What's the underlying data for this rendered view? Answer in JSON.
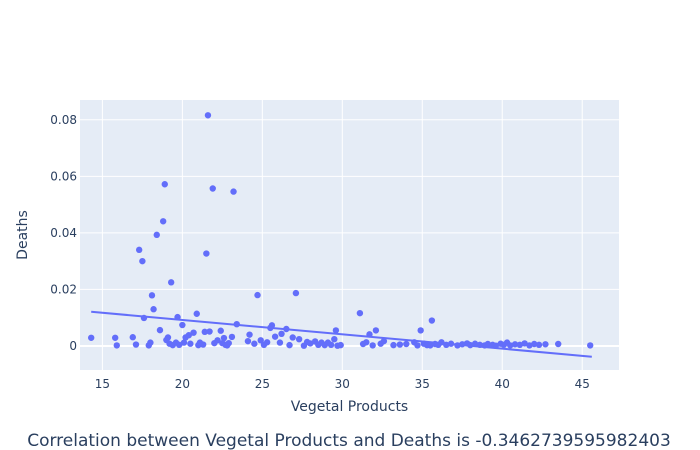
{
  "chart_data": {
    "type": "scatter",
    "title": "",
    "xlabel": "Vegetal Products",
    "ylabel": "Deaths",
    "caption": "Correlation between Vegetal Products and Deaths is -0.3462739595982403",
    "xlim": [
      13.6,
      47.3
    ],
    "ylim": [
      -0.0085,
      0.087
    ],
    "xticks": [
      15,
      20,
      25,
      30,
      35,
      40,
      45
    ],
    "yticks": [
      0,
      0.02,
      0.04,
      0.06,
      0.08
    ],
    "ytick_labels": [
      "0",
      "0.02",
      "0.04",
      "0.06",
      "0.08"
    ],
    "grid": true,
    "colors": {
      "marker": "#636efa",
      "trendline": "#636efa",
      "plot_bg": "#e5ecf6",
      "grid": "#ffffff",
      "text": "#2a3f5f"
    },
    "trendline": {
      "x": [
        14.3,
        45.6
      ],
      "y": [
        0.0121,
        -0.0038
      ]
    },
    "points": [
      [
        14.3,
        0.0029
      ],
      [
        15.8,
        0.0029
      ],
      [
        15.9,
        0.0002
      ],
      [
        16.9,
        0.0031
      ],
      [
        17.1,
        0.0005
      ],
      [
        17.3,
        0.034
      ],
      [
        17.5,
        0.03
      ],
      [
        17.6,
        0.0099
      ],
      [
        17.9,
        0.0002
      ],
      [
        18.0,
        0.0012
      ],
      [
        18.1,
        0.0179
      ],
      [
        18.2,
        0.013
      ],
      [
        18.4,
        0.0393
      ],
      [
        18.6,
        0.0056
      ],
      [
        18.8,
        0.0441
      ],
      [
        18.9,
        0.0572
      ],
      [
        19.0,
        0.0021
      ],
      [
        19.1,
        0.003
      ],
      [
        19.2,
        0.0008
      ],
      [
        19.3,
        0.0225
      ],
      [
        19.4,
        0.0003
      ],
      [
        19.6,
        0.0012
      ],
      [
        19.7,
        0.0102
      ],
      [
        19.8,
        0.0004
      ],
      [
        20.0,
        0.0074
      ],
      [
        20.1,
        0.0012
      ],
      [
        20.2,
        0.003
      ],
      [
        20.4,
        0.0038
      ],
      [
        20.5,
        0.0008
      ],
      [
        20.7,
        0.0047
      ],
      [
        20.9,
        0.0114
      ],
      [
        21.0,
        0.0003
      ],
      [
        21.1,
        0.0012
      ],
      [
        21.3,
        0.0005
      ],
      [
        21.4,
        0.005
      ],
      [
        21.5,
        0.0327
      ],
      [
        21.6,
        0.0816
      ],
      [
        21.7,
        0.0051
      ],
      [
        21.9,
        0.0557
      ],
      [
        22.0,
        0.001
      ],
      [
        22.2,
        0.002
      ],
      [
        22.4,
        0.0054
      ],
      [
        22.5,
        0.001
      ],
      [
        22.6,
        0.0028
      ],
      [
        22.7,
        0.0004
      ],
      [
        22.8,
        0.0002
      ],
      [
        22.9,
        0.001
      ],
      [
        23.1,
        0.0032
      ],
      [
        23.2,
        0.0546
      ],
      [
        23.4,
        0.0077
      ],
      [
        24.1,
        0.0017
      ],
      [
        24.2,
        0.004
      ],
      [
        24.5,
        0.0008
      ],
      [
        24.7,
        0.018
      ],
      [
        24.9,
        0.002
      ],
      [
        25.1,
        0.0004
      ],
      [
        25.3,
        0.0013
      ],
      [
        25.5,
        0.0064
      ],
      [
        25.6,
        0.0073
      ],
      [
        25.8,
        0.0033
      ],
      [
        26.1,
        0.0012
      ],
      [
        26.2,
        0.0043
      ],
      [
        26.5,
        0.006
      ],
      [
        26.7,
        0.0003
      ],
      [
        26.9,
        0.003
      ],
      [
        27.1,
        0.0187
      ],
      [
        27.3,
        0.0024
      ],
      [
        27.6,
        0.0001
      ],
      [
        27.8,
        0.0014
      ],
      [
        28.0,
        0.0009
      ],
      [
        28.3,
        0.0016
      ],
      [
        28.5,
        0.0004
      ],
      [
        28.7,
        0.0012
      ],
      [
        28.9,
        0.0003
      ],
      [
        29.1,
        0.0012
      ],
      [
        29.3,
        0.0004
      ],
      [
        29.5,
        0.0024
      ],
      [
        29.6,
        0.0055
      ],
      [
        29.7,
        0.0001
      ],
      [
        29.9,
        0.0003
      ],
      [
        31.1,
        0.0116
      ],
      [
        31.3,
        0.0007
      ],
      [
        31.5,
        0.0013
      ],
      [
        31.7,
        0.0041
      ],
      [
        31.9,
        0.0002
      ],
      [
        32.1,
        0.0055
      ],
      [
        32.4,
        0.0008
      ],
      [
        32.6,
        0.0017
      ],
      [
        33.2,
        0.0003
      ],
      [
        33.6,
        0.0005
      ],
      [
        34.0,
        0.0007
      ],
      [
        34.5,
        0.0013
      ],
      [
        34.7,
        0.0002
      ],
      [
        34.9,
        0.0055
      ],
      [
        35.1,
        0.0008
      ],
      [
        35.3,
        0.0003
      ],
      [
        35.5,
        0.0002
      ],
      [
        35.6,
        0.009
      ],
      [
        35.8,
        0.0007
      ],
      [
        36.0,
        0.0004
      ],
      [
        36.2,
        0.0013
      ],
      [
        36.5,
        0.0004
      ],
      [
        36.8,
        0.0008
      ],
      [
        37.2,
        0.0002
      ],
      [
        37.5,
        0.0006
      ],
      [
        37.8,
        0.0009
      ],
      [
        38.0,
        0.0003
      ],
      [
        38.3,
        0.0008
      ],
      [
        38.6,
        0.0004
      ],
      [
        38.9,
        0.0002
      ],
      [
        39.1,
        0.0007
      ],
      [
        39.4,
        0.0004
      ],
      [
        39.6,
        0.0001
      ],
      [
        39.9,
        0.0008
      ],
      [
        40.1,
        0.0004
      ],
      [
        40.3,
        0.0012
      ],
      [
        40.5,
        0.0002
      ],
      [
        40.8,
        0.0006
      ],
      [
        41.1,
        0.0004
      ],
      [
        41.4,
        0.0009
      ],
      [
        41.7,
        0.0002
      ],
      [
        42.0,
        0.0007
      ],
      [
        42.3,
        0.0004
      ],
      [
        42.7,
        0.0006
      ],
      [
        43.5,
        0.0007
      ],
      [
        45.5,
        0.0002
      ]
    ]
  }
}
